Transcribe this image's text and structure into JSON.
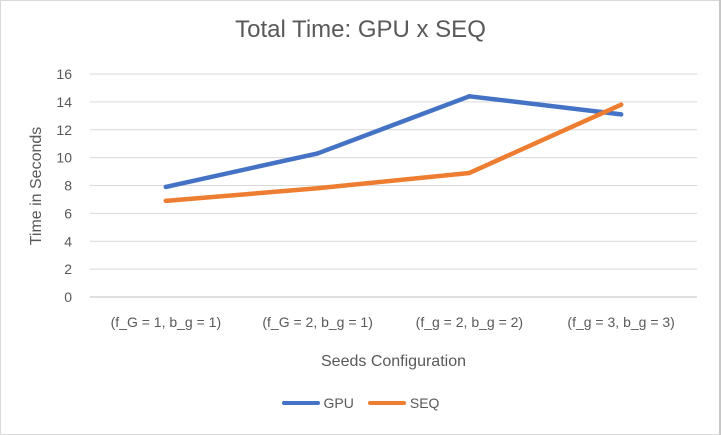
{
  "chart_data": {
    "type": "line",
    "title": "Total Time: GPU x SEQ",
    "xlabel": "Seeds Configuration",
    "ylabel": "Time in Seconds",
    "categories": [
      "(f_G = 1, b_g = 1)",
      "(f_G = 2, b_g = 1)",
      "(f_g = 2, b_g = 2)",
      "(f_g = 3, b_g = 3)"
    ],
    "ylim": [
      0,
      16
    ],
    "yticks": [
      "0",
      "2",
      "4",
      "6",
      "8",
      "10",
      "12",
      "14",
      "16"
    ],
    "grid": true,
    "legend_position": "bottom",
    "series": [
      {
        "name": "GPU",
        "color": "#4472c4",
        "values": [
          7.9,
          10.3,
          14.4,
          13.1
        ]
      },
      {
        "name": "SEQ",
        "color": "#ed7d31",
        "values": [
          6.9,
          7.8,
          8.9,
          13.8
        ]
      }
    ]
  }
}
